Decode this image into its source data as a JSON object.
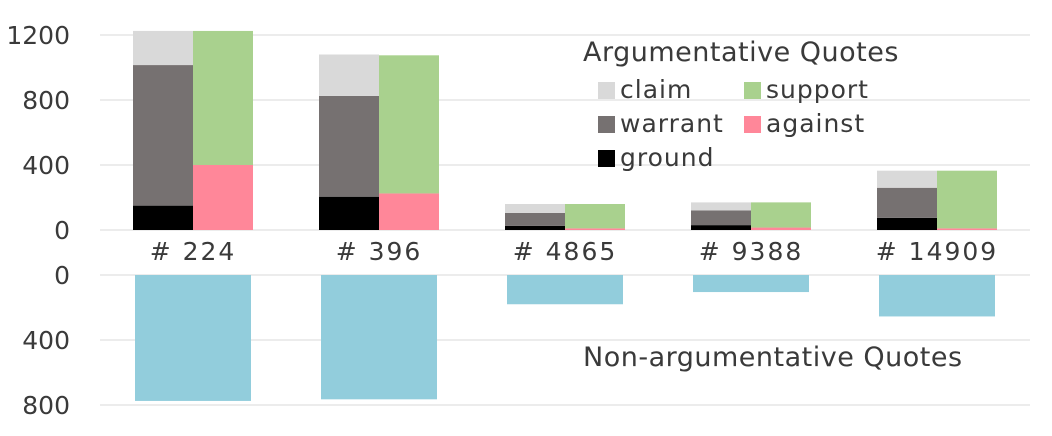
{
  "chart_data": [
    {
      "type": "bar",
      "stacked": true,
      "title": "Argumentative Quotes",
      "categories": [
        "# 224",
        "# 396",
        "# 4865",
        "# 9388",
        "# 14909"
      ],
      "ylim": [
        0,
        1250
      ],
      "yticks": [
        0,
        400,
        800,
        1200
      ],
      "grid": true,
      "legend_placement": "top-right",
      "bar_groups": [
        {
          "stack": "left",
          "series": [
            {
              "name": "ground",
              "color": "#000000",
              "values": [
                150,
                205,
                25,
                30,
                75
              ]
            },
            {
              "name": "warrant",
              "color": "#767171",
              "values": [
                865,
                620,
                80,
                90,
                185
              ]
            },
            {
              "name": "claim",
              "color": "#d9d9d9",
              "values": [
                210,
                255,
                55,
                50,
                105
              ]
            }
          ]
        },
        {
          "stack": "right",
          "series": [
            {
              "name": "against",
              "color": "#ff8799",
              "values": [
                400,
                225,
                10,
                15,
                10
              ]
            },
            {
              "name": "support",
              "color": "#a9d18e",
              "values": [
                825,
                850,
                150,
                155,
                355
              ]
            }
          ]
        }
      ],
      "legend": [
        {
          "name": "claim",
          "color": "#d9d9d9"
        },
        {
          "name": "support",
          "color": "#a9d18e"
        },
        {
          "name": "warrant",
          "color": "#767171"
        },
        {
          "name": "against",
          "color": "#ff8799"
        },
        {
          "name": "ground",
          "color": "#000000"
        }
      ]
    },
    {
      "type": "bar",
      "orientation": "downward",
      "title": "Non-argumentative Quotes",
      "categories": [
        "# 224",
        "# 396",
        "# 4865",
        "# 9388",
        "# 14909"
      ],
      "ylim": [
        0,
        800
      ],
      "yticks": [
        0,
        400,
        800
      ],
      "grid": true,
      "series": [
        {
          "color": "#92cddc",
          "values": [
            775,
            765,
            180,
            105,
            255
          ]
        }
      ]
    }
  ]
}
